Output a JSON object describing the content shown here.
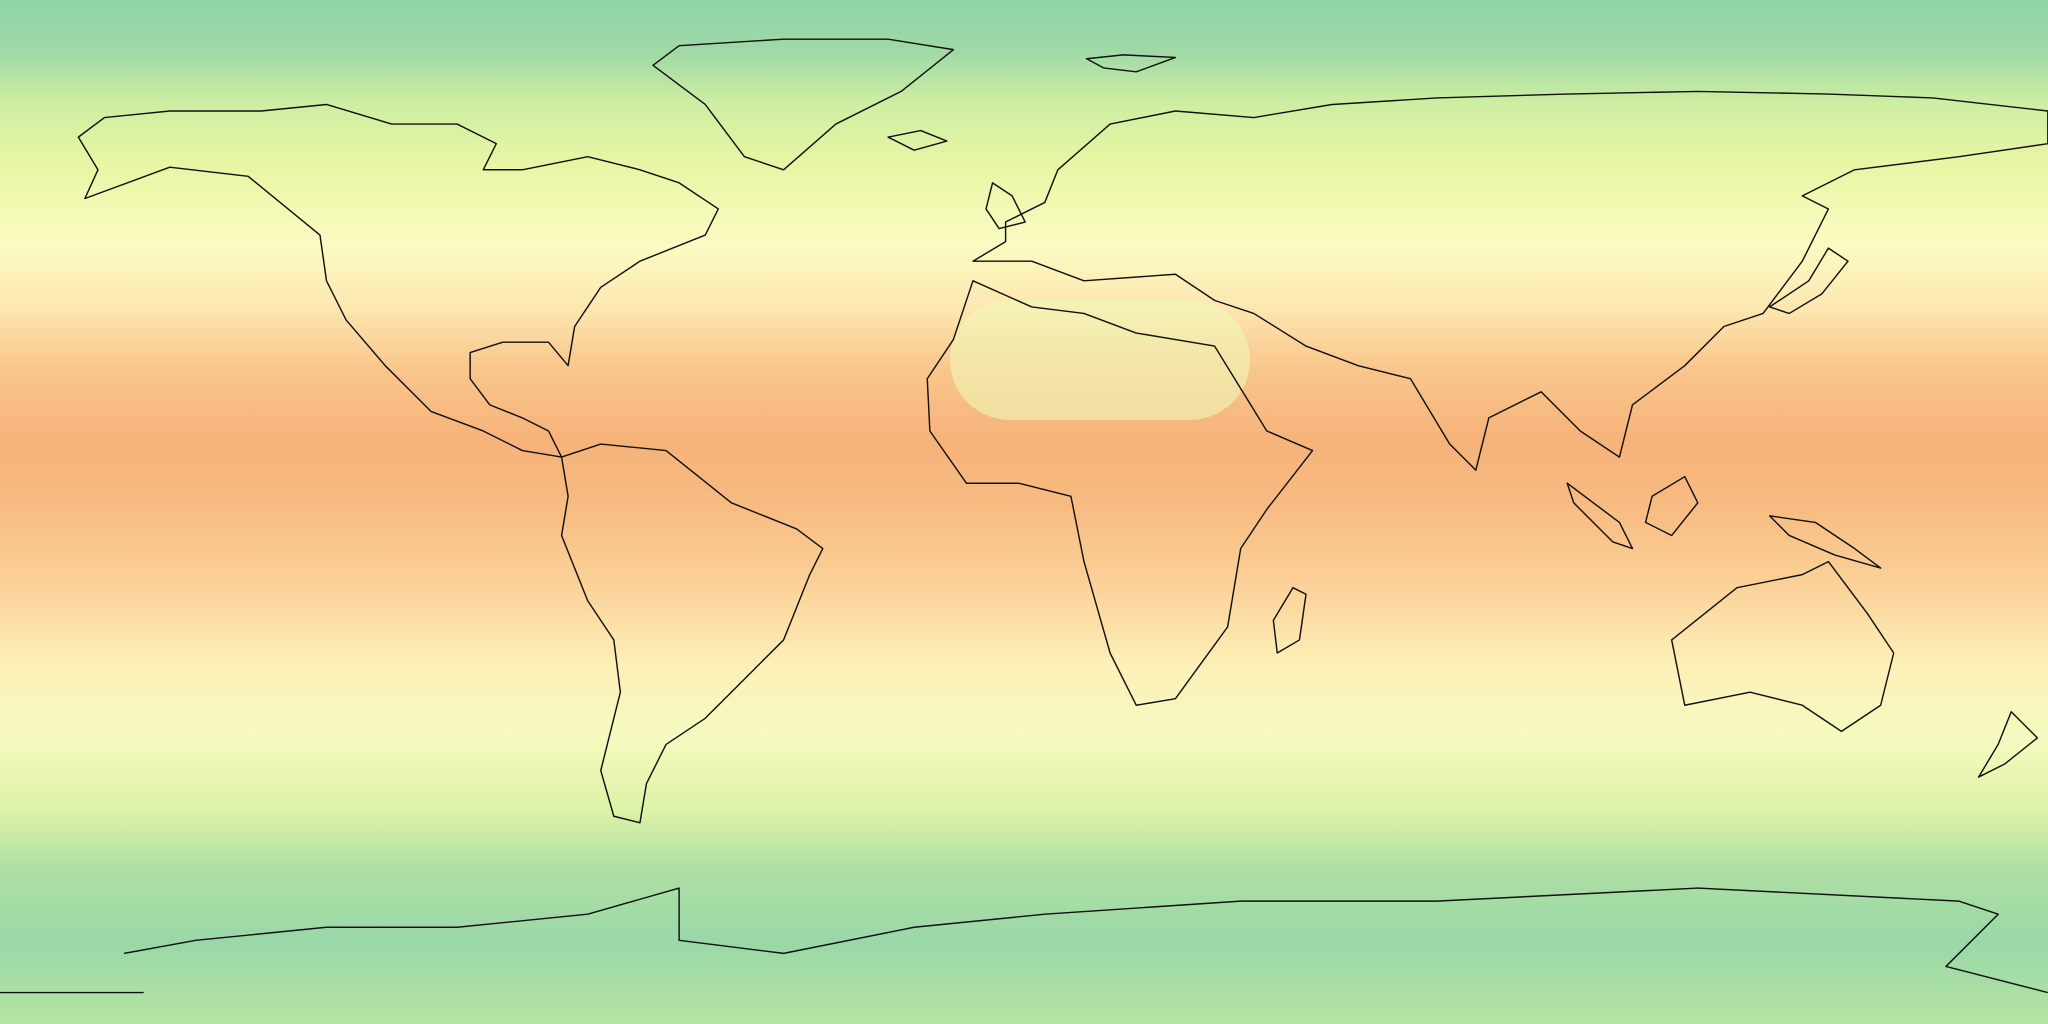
{
  "map": {
    "projection": "equirectangular",
    "extent": "global",
    "overlay": "coastlines",
    "coastline_color": "#111111",
    "colormap": {
      "polar": "#8fd4a8",
      "high_latitude": "#b8e4a4",
      "mid_latitude": "#e8f6a4",
      "subtropics": "#fffbc4",
      "tropics": "#f9c68c",
      "equator_max": "#f4a870"
    }
  }
}
